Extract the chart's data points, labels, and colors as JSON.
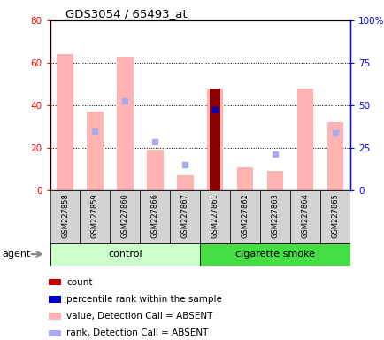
{
  "title": "GDS3054 / 65493_at",
  "samples": [
    "GSM227858",
    "GSM227859",
    "GSM227860",
    "GSM227866",
    "GSM227867",
    "GSM227861",
    "GSM227862",
    "GSM227863",
    "GSM227864",
    "GSM227865"
  ],
  "value_absent": [
    64,
    37,
    63,
    19,
    7,
    0,
    11,
    9,
    48,
    32
  ],
  "rank_absent": [
    0,
    28,
    42,
    23,
    12,
    0,
    0,
    17,
    0,
    27
  ],
  "count_present": [
    0,
    0,
    0,
    0,
    0,
    48,
    0,
    0,
    0,
    0
  ],
  "rank_present": [
    0,
    0,
    0,
    0,
    0,
    38,
    0,
    0,
    0,
    0
  ],
  "value_absent_only": [
    64,
    37,
    63,
    19,
    7,
    48,
    11,
    9,
    48,
    32
  ],
  "rank_absent_vals": [
    0,
    28,
    42,
    23,
    12,
    0,
    0,
    17,
    0,
    27
  ],
  "ylim_left": [
    0,
    80
  ],
  "ylim_right": [
    0,
    100
  ],
  "yticks_left": [
    0,
    20,
    40,
    60,
    80
  ],
  "yticks_right": [
    0,
    25,
    50,
    75,
    100
  ],
  "ytick_labels_left": [
    "0",
    "20",
    "40",
    "60",
    "80"
  ],
  "ytick_labels_right": [
    "0",
    "25",
    "50",
    "75",
    "100%"
  ],
  "color_value_absent": "#ffb3b3",
  "color_rank_absent": "#aaaaee",
  "color_count_present": "#8b0000",
  "color_rank_present": "#0000bb",
  "color_control_label_bg": "#ccffcc",
  "color_smoke_label_bg": "#44dd44",
  "legend_items": [
    {
      "color": "#cc0000",
      "label": "count"
    },
    {
      "color": "#0000cc",
      "label": "percentile rank within the sample"
    },
    {
      "color": "#ffb3b3",
      "label": "value, Detection Call = ABSENT"
    },
    {
      "color": "#aaaaee",
      "label": "rank, Detection Call = ABSENT"
    }
  ]
}
